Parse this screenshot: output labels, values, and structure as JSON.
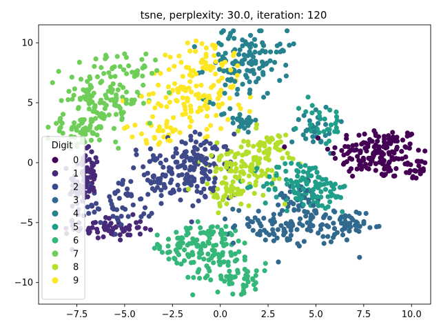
{
  "chart_data": {
    "type": "scatter",
    "title": "tsne, perplexity: 30.0, iteration: 120",
    "xlabel": "",
    "ylabel": "",
    "xlim": [
      -9.5,
      11.0
    ],
    "ylim": [
      -11.8,
      11.5
    ],
    "x_ticks": [
      -7.5,
      -5.0,
      -2.5,
      0.0,
      2.5,
      5.0,
      7.5,
      10.0
    ],
    "x_tick_labels": [
      "−7.5",
      "−5.0",
      "−2.5",
      "0.0",
      "2.5",
      "5.0",
      "7.5",
      "10.0"
    ],
    "y_ticks": [
      -10,
      -5,
      0,
      5,
      10
    ],
    "y_tick_labels": [
      "−10",
      "−5",
      "0",
      "5",
      "10"
    ],
    "grid": false,
    "legend": {
      "title": "Digit",
      "placement": "center-left"
    },
    "series": [
      {
        "name": "0",
        "color": "#440154",
        "clusters": [
          {
            "cx": 8.2,
            "cy": 0.8,
            "sx": 1.2,
            "sy": 1.1,
            "n": 150
          },
          {
            "cx": 10.2,
            "cy": -0.6,
            "sx": 0.3,
            "sy": 0.5,
            "n": 20
          }
        ]
      },
      {
        "name": "1",
        "color": "#482878",
        "clusters": [
          {
            "cx": -7.2,
            "cy": -1.8,
            "sx": 0.35,
            "sy": 1.3,
            "n": 70
          },
          {
            "cx": -5.8,
            "cy": -5.5,
            "sx": 0.9,
            "sy": 0.5,
            "n": 60
          },
          {
            "cx": -6.8,
            "cy": -0.3,
            "sx": 0.3,
            "sy": 0.6,
            "n": 20
          }
        ]
      },
      {
        "name": "2",
        "color": "#3e4989",
        "clusters": [
          {
            "cx": -2.6,
            "cy": -1.2,
            "sx": 1.2,
            "sy": 1.3,
            "n": 120
          },
          {
            "cx": -1.0,
            "cy": -0.2,
            "sx": 0.8,
            "sy": 1.3,
            "n": 70
          },
          {
            "cx": -5.5,
            "cy": -3.5,
            "sx": 0.8,
            "sy": 0.9,
            "n": 40
          }
        ]
      },
      {
        "name": "3",
        "color": "#31688e",
        "clusters": [
          {
            "cx": 3.8,
            "cy": -5.2,
            "sx": 1.5,
            "sy": 0.8,
            "n": 110
          },
          {
            "cx": 6.6,
            "cy": -5.5,
            "sx": 0.5,
            "sy": 0.8,
            "n": 35
          },
          {
            "cx": 4.0,
            "cy": -3.0,
            "sx": 0.8,
            "sy": 0.7,
            "n": 30
          }
        ]
      },
      {
        "name": "4",
        "color": "#26828e",
        "clusters": [
          {
            "cx": 1.2,
            "cy": 8.2,
            "sx": 1.0,
            "sy": 1.5,
            "n": 110
          },
          {
            "cx": 1.0,
            "cy": 3.6,
            "sx": 0.5,
            "sy": 0.4,
            "n": 25
          },
          {
            "cx": 5.0,
            "cy": 2.8,
            "sx": 0.6,
            "sy": 1.0,
            "n": 30
          },
          {
            "cx": 2.5,
            "cy": 9.8,
            "sx": 0.6,
            "sy": 0.4,
            "n": 15
          }
        ]
      },
      {
        "name": "5",
        "color": "#1f9e89",
        "clusters": [
          {
            "cx": 4.2,
            "cy": -1.8,
            "sx": 1.0,
            "sy": 1.0,
            "n": 90
          },
          {
            "cx": 5.3,
            "cy": 3.4,
            "sx": 0.6,
            "sy": 1.0,
            "n": 30
          },
          {
            "cx": 5.5,
            "cy": -2.8,
            "sx": 0.8,
            "sy": 0.8,
            "n": 30
          }
        ]
      },
      {
        "name": "6",
        "color": "#35b779",
        "clusters": [
          {
            "cx": -0.5,
            "cy": -7.0,
            "sx": 1.1,
            "sy": 1.0,
            "n": 110
          },
          {
            "cx": 0.8,
            "cy": -9.6,
            "sx": 1.1,
            "sy": 0.6,
            "n": 50
          },
          {
            "cx": -2.2,
            "cy": -6.8,
            "sx": 0.6,
            "sy": 0.6,
            "n": 25
          }
        ]
      },
      {
        "name": "7",
        "color": "#6ece58",
        "clusters": [
          {
            "cx": -6.2,
            "cy": 5.2,
            "sx": 1.1,
            "sy": 1.5,
            "n": 140
          },
          {
            "cx": -7.5,
            "cy": 2.6,
            "sx": 0.7,
            "sy": 0.6,
            "n": 40
          },
          {
            "cx": -4.5,
            "cy": 7.8,
            "sx": 0.8,
            "sy": 0.7,
            "n": 25
          }
        ]
      },
      {
        "name": "8",
        "color": "#b5de2b",
        "clusters": [
          {
            "cx": 1.3,
            "cy": 0.0,
            "sx": 1.0,
            "sy": 1.2,
            "n": 110
          },
          {
            "cx": 0.6,
            "cy": -2.6,
            "sx": 0.6,
            "sy": 0.6,
            "n": 40
          },
          {
            "cx": 2.6,
            "cy": 1.4,
            "sx": 0.5,
            "sy": 0.5,
            "n": 25
          }
        ]
      },
      {
        "name": "9",
        "color": "#fde725",
        "clusters": [
          {
            "cx": -1.5,
            "cy": 5.5,
            "sx": 1.2,
            "sy": 1.4,
            "n": 110
          },
          {
            "cx": -0.5,
            "cy": 8.6,
            "sx": 0.8,
            "sy": 0.9,
            "n": 40
          },
          {
            "cx": -3.6,
            "cy": 2.4,
            "sx": 0.7,
            "sy": 0.5,
            "n": 25
          }
        ]
      }
    ]
  }
}
